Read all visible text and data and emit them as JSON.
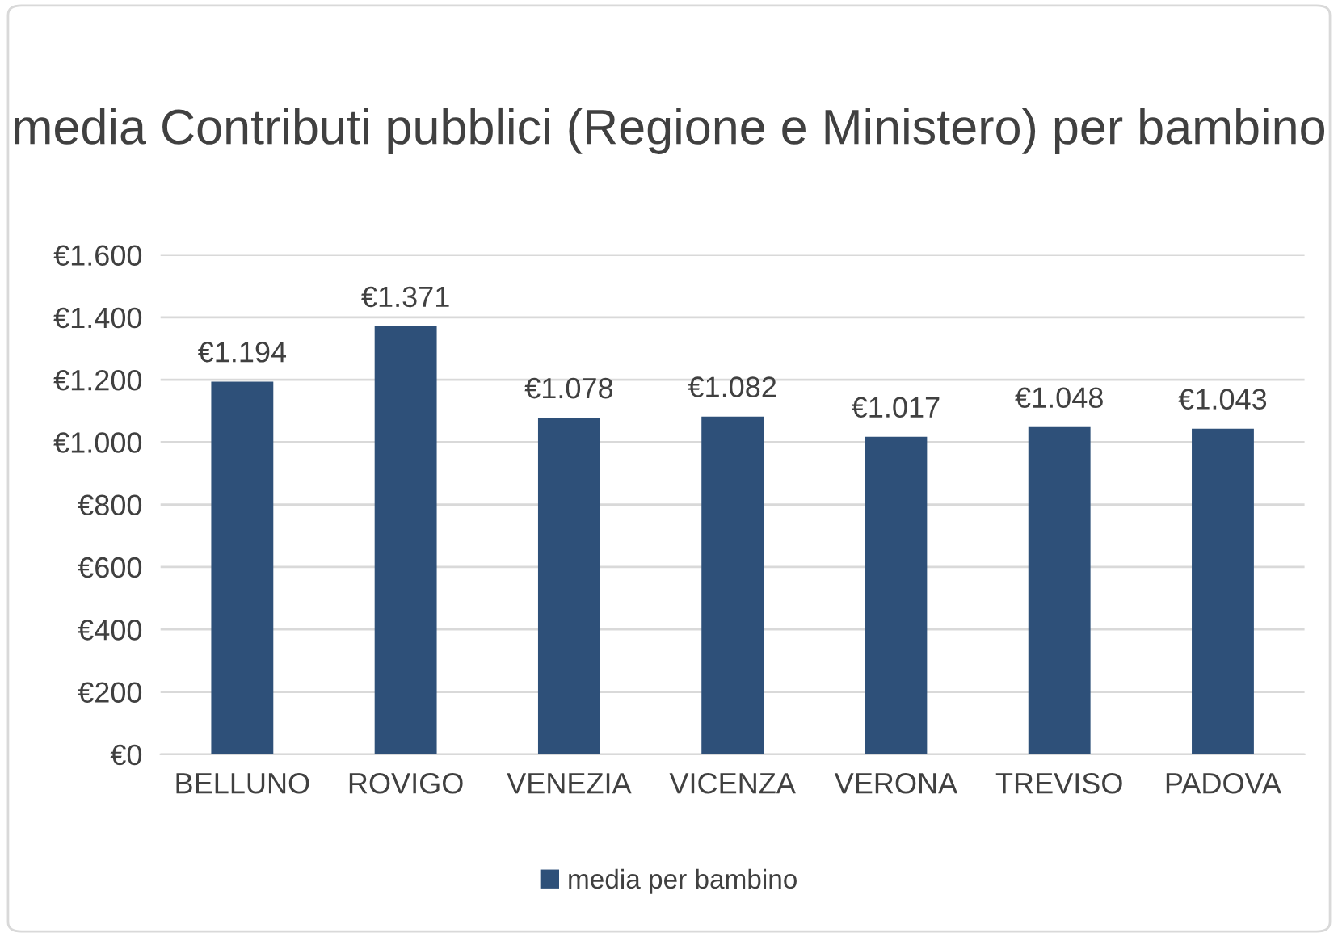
{
  "chart_data": {
    "type": "bar",
    "title": "media Contributi pubblici (Regione e Ministero) per bambino",
    "categories": [
      "BELLUNO",
      "ROVIGO",
      "VENEZIA",
      "VICENZA",
      "VERONA",
      "TREVISO",
      "PADOVA"
    ],
    "series": [
      {
        "name": "media per bambino",
        "color": "#2e5079",
        "values": [
          1194,
          1371,
          1078,
          1082,
          1017,
          1048,
          1043
        ],
        "value_labels": [
          "€1.194",
          "€1.371",
          "€1.078",
          "€1.082",
          "€1.017",
          "€1.048",
          "€1.043"
        ]
      }
    ],
    "ylim": [
      0,
      1600
    ],
    "yticks": [
      {
        "value": 0,
        "label": "€0"
      },
      {
        "value": 200,
        "label": "€200"
      },
      {
        "value": 400,
        "label": "€400"
      },
      {
        "value": 600,
        "label": "€600"
      },
      {
        "value": 800,
        "label": "€800"
      },
      {
        "value": 1000,
        "label": "€1.000"
      },
      {
        "value": 1200,
        "label": "€1.200"
      },
      {
        "value": 1400,
        "label": "€1.400"
      },
      {
        "value": 1600,
        "label": "€1.600"
      }
    ],
    "grid": "y",
    "legend": "bottom"
  }
}
